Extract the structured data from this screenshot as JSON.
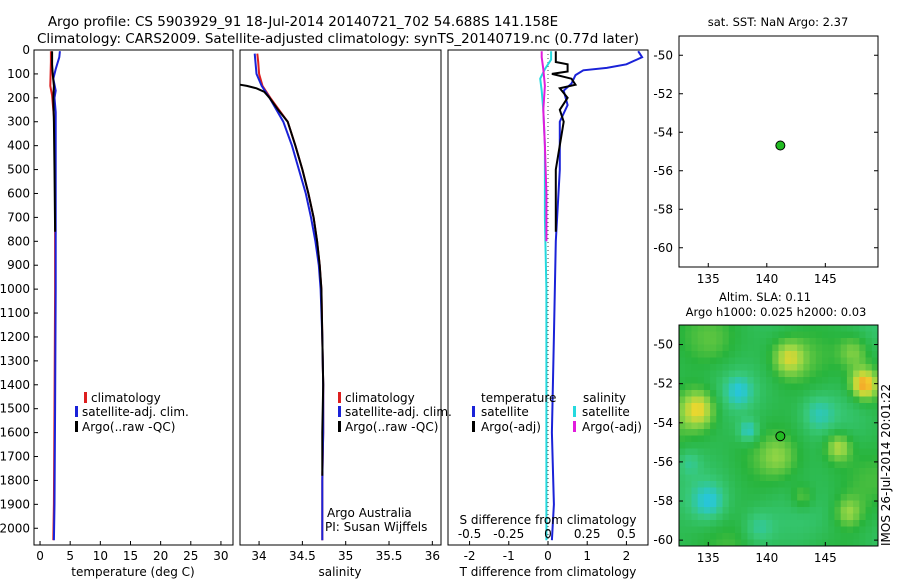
{
  "header": {
    "line1": "Argo profile: CS 5903929_91 18-Jul-2014 20140721_702 54.688S 141.158E",
    "line2": "Climatology: CARS2009. Satellite-adjusted climatology: synTS_20140719.nc (0.77d later)"
  },
  "colors": {
    "climatology": "#dd1f1f",
    "satellite": "#1a22d8",
    "argo": "#000000",
    "sal_satellite": "#25d9de",
    "sal_argo": "#e11cdc",
    "dot": "#22bb22"
  },
  "chart_data": [
    {
      "type": "line",
      "id": "temperature",
      "xlabel": "temperature (deg C)",
      "xlim": [
        -1,
        32
      ],
      "ylim": [
        2070,
        0
      ],
      "xticks": [
        0,
        5,
        10,
        15,
        20,
        25,
        30
      ],
      "yticks": [
        0,
        100,
        200,
        300,
        400,
        500,
        600,
        700,
        800,
        900,
        1000,
        1100,
        1200,
        1300,
        1400,
        1500,
        1600,
        1700,
        1800,
        1900,
        2000
      ],
      "legend": [
        "climatology",
        "satellite-adj. clim.",
        "Argo(..raw -QC)"
      ],
      "series": [
        {
          "name": "climatology",
          "color": "#dd1f1f",
          "points": [
            [
              1.8,
              5
            ],
            [
              1.8,
              50
            ],
            [
              1.7,
              150
            ],
            [
              2.0,
              190
            ],
            [
              2.2,
              250
            ],
            [
              2.4,
              300
            ],
            [
              2.5,
              500
            ],
            [
              2.5,
              1000
            ],
            [
              2.4,
              1500
            ],
            [
              2.3,
              1900
            ],
            [
              2.2,
              2050
            ]
          ]
        },
        {
          "name": "satellite-adj. clim.",
          "color": "#1a22d8",
          "points": [
            [
              3.3,
              5
            ],
            [
              3.2,
              30
            ],
            [
              2.6,
              80
            ],
            [
              2.2,
              120
            ],
            [
              2.6,
              170
            ],
            [
              2.4,
              200
            ],
            [
              2.6,
              260
            ],
            [
              2.6,
              500
            ],
            [
              2.6,
              1000
            ],
            [
              2.5,
              1500
            ],
            [
              2.4,
              1900
            ],
            [
              2.3,
              2050
            ]
          ]
        },
        {
          "name": "Argo(..raw -QC)",
          "color": "#000000",
          "points": [
            [
              2.0,
              5
            ],
            [
              2.0,
              60
            ],
            [
              2.1,
              100
            ],
            [
              2.3,
              150
            ],
            [
              2.2,
              200
            ],
            [
              2.3,
              300
            ],
            [
              2.4,
              500
            ],
            [
              2.5,
              760
            ]
          ]
        }
      ]
    },
    {
      "type": "line",
      "id": "salinity",
      "xlabel": "salinity",
      "xlim": [
        33.78,
        36.1
      ],
      "ylim": [
        2070,
        0
      ],
      "xticks": [
        34,
        34.5,
        35,
        35.5,
        36
      ],
      "legend": [
        "climatology",
        "satellite-adj. clim.",
        "Argo(..raw -QC)"
      ],
      "annotations": [
        "Argo Australia",
        "PI: Susan Wijffels"
      ],
      "series": [
        {
          "name": "climatology",
          "color": "#dd1f1f",
          "points": [
            [
              33.98,
              15
            ],
            [
              33.99,
              50
            ],
            [
              34.0,
              100
            ],
            [
              34.04,
              150
            ],
            [
              34.13,
              200
            ],
            [
              34.23,
              250
            ],
            [
              34.33,
              300
            ],
            [
              34.42,
              400
            ],
            [
              34.5,
              500
            ],
            [
              34.57,
              600
            ],
            [
              34.63,
              700
            ],
            [
              34.67,
              800
            ],
            [
              34.7,
              900
            ],
            [
              34.72,
              1000
            ],
            [
              34.73,
              1200
            ],
            [
              34.74,
              1400
            ],
            [
              34.74,
              1600
            ],
            [
              34.73,
              1800
            ],
            [
              34.73,
              2050
            ]
          ]
        },
        {
          "name": "satellite-adj. clim.",
          "color": "#1a22d8",
          "points": [
            [
              33.95,
              15
            ],
            [
              33.97,
              100
            ],
            [
              34.03,
              150
            ],
            [
              34.12,
              200
            ],
            [
              34.2,
              250
            ],
            [
              34.28,
              300
            ],
            [
              34.38,
              400
            ],
            [
              34.46,
              500
            ],
            [
              34.54,
              600
            ],
            [
              34.6,
              700
            ],
            [
              34.65,
              800
            ],
            [
              34.69,
              900
            ],
            [
              34.71,
              1000
            ],
            [
              34.73,
              1200
            ],
            [
              34.74,
              1400
            ],
            [
              34.74,
              1600
            ],
            [
              34.73,
              1800
            ],
            [
              34.73,
              2050
            ]
          ]
        },
        {
          "name": "Argo(..raw -QC)",
          "color": "#000000",
          "points": [
            [
              33.78,
              145
            ],
            [
              33.86,
              150
            ],
            [
              33.97,
              160
            ],
            [
              34.06,
              175
            ],
            [
              34.12,
              200
            ],
            [
              34.22,
              250
            ],
            [
              34.33,
              300
            ],
            [
              34.42,
              400
            ],
            [
              34.5,
              500
            ],
            [
              34.57,
              600
            ],
            [
              34.63,
              700
            ],
            [
              34.67,
              800
            ],
            [
              34.7,
              900
            ],
            [
              34.72,
              1000
            ],
            [
              34.73,
              1200
            ],
            [
              34.74,
              1400
            ],
            [
              34.73,
              1600
            ],
            [
              34.73,
              1780
            ]
          ]
        }
      ]
    },
    {
      "type": "line",
      "id": "difference",
      "xlabel": "T difference from climatology",
      "xlabel_top": "S difference from climatology",
      "xlim": [
        -2.55,
        2.55
      ],
      "ylim": [
        2070,
        0
      ],
      "xticks": [
        -2,
        -1,
        0,
        1,
        2
      ],
      "xticks_s": [
        -0.5,
        -0.25,
        0,
        0.25,
        0.5
      ],
      "xticks_s_labels": [
        "-0.5",
        "-0.25",
        "0",
        "0.25",
        "0.5"
      ],
      "legend_headers": [
        "temperature",
        "salinity"
      ],
      "legend_temperature": [
        "satellite",
        "Argo(-adj)"
      ],
      "legend_salinity": [
        "satellite",
        "Argo(-adj)"
      ],
      "series": [
        {
          "name": "T satellite",
          "color": "#1a22d8",
          "points": [
            [
              2.3,
              5
            ],
            [
              2.4,
              30
            ],
            [
              2.0,
              60
            ],
            [
              1.5,
              75
            ],
            [
              0.9,
              85
            ],
            [
              0.7,
              105
            ],
            [
              0.6,
              140
            ],
            [
              0.4,
              170
            ],
            [
              0.5,
              230
            ],
            [
              0.3,
              300
            ],
            [
              0.3,
              500
            ],
            [
              0.2,
              800
            ],
            [
              0.15,
              1200
            ],
            [
              0.1,
              1600
            ],
            [
              0.15,
              1900
            ],
            [
              0.1,
              2050
            ]
          ]
        },
        {
          "name": "T Argo(-adj)",
          "color": "#000000",
          "points": [
            [
              0.2,
              5
            ],
            [
              0.2,
              50
            ],
            [
              0.5,
              60
            ],
            [
              0.5,
              90
            ],
            [
              0.1,
              100
            ],
            [
              0.6,
              120
            ],
            [
              0.7,
              145
            ],
            [
              0.3,
              160
            ],
            [
              0.5,
              200
            ],
            [
              0.3,
              250
            ],
            [
              0.4,
              300
            ],
            [
              0.2,
              500
            ],
            [
              0.2,
              760
            ]
          ]
        },
        {
          "name": "S satellite",
          "color": "#25d9de",
          "points": [
            [
              0.02,
              5
            ],
            [
              0.02,
              40
            ],
            [
              -0.02,
              80
            ],
            [
              -0.05,
              120
            ],
            [
              -0.04,
              170
            ],
            [
              -0.03,
              250
            ],
            [
              -0.02,
              400
            ],
            [
              -0.02,
              700
            ],
            [
              -0.01,
              1000
            ],
            [
              -0.01,
              1500
            ],
            [
              -0.01,
              2050
            ]
          ]
        },
        {
          "name": "S Argo(-adj)",
          "color": "#e11cdc",
          "points": [
            [
              -0.04,
              5
            ],
            [
              -0.04,
              30
            ],
            [
              -0.03,
              80
            ],
            [
              -0.02,
              150
            ],
            [
              -0.03,
              250
            ],
            [
              -0.02,
              400
            ],
            [
              -0.01,
              600
            ],
            [
              -0.01,
              800
            ]
          ]
        }
      ]
    },
    {
      "type": "scatter",
      "id": "sst-map",
      "title": "sat. SST: NaN Argo: 2.37",
      "xlim": [
        132.5,
        149.5
      ],
      "ylim": [
        -61,
        -49
      ],
      "xticks": [
        135,
        140,
        145
      ],
      "yticks": [
        -50,
        -52,
        -54,
        -56,
        -58,
        -60
      ],
      "points": [
        [
          141.158,
          -54.688
        ]
      ]
    },
    {
      "type": "heatmap",
      "id": "sla-map",
      "title": "Altim. SLA: 0.11",
      "subtitle": "Argo h1000: 0.025 h2000: 0.03",
      "xlim": [
        132.5,
        149.5
      ],
      "ylim": [
        -60.3,
        -49
      ],
      "xticks": [
        135,
        140,
        145
      ],
      "yticks": [
        -50,
        -52,
        -54,
        -56,
        -58,
        -60
      ],
      "points": [
        [
          141.158,
          -54.688
        ]
      ]
    }
  ],
  "watermark": "IMOS 26-Jul-2014 20:01:22"
}
